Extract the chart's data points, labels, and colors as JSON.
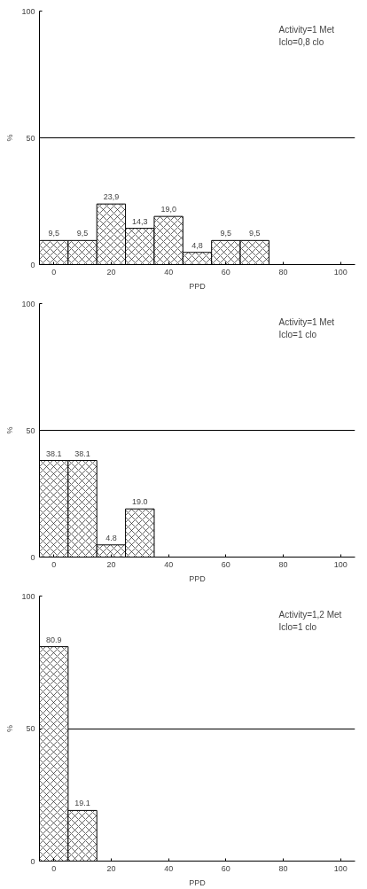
{
  "chart_data": [
    {
      "type": "histogram",
      "bins": [
        -5,
        5,
        15,
        25,
        35,
        45,
        55,
        65,
        75
      ],
      "values": [
        9.5,
        9.5,
        23.9,
        14.3,
        19.0,
        4.8,
        9.5,
        9.5
      ],
      "value_labels": [
        "9,5",
        "9,5",
        "23,9",
        "14,3",
        "19,0",
        "4,8",
        "9,5",
        "9,5"
      ],
      "color": "#000000",
      "xlim": [
        -5,
        105
      ],
      "xticks": [
        0,
        20,
        40,
        60,
        80,
        100
      ],
      "ylim": [
        0,
        100
      ],
      "yticks": [
        0,
        50,
        100
      ],
      "grid": "y",
      "xlabel": "PPD",
      "ylabel": "%",
      "annotations": [
        "Activity=1 Met",
        "Iclo=0,8 clo"
      ]
    },
    {
      "type": "histogram",
      "bins": [
        -5,
        5,
        15,
        25,
        35
      ],
      "values": [
        38.1,
        38.1,
        4.8,
        19.0
      ],
      "value_labels": [
        "38.1",
        "38.1",
        "4.8",
        "19.0"
      ],
      "color": "#000000",
      "xlim": [
        -5,
        105
      ],
      "xticks": [
        0,
        20,
        40,
        60,
        80,
        100
      ],
      "ylim": [
        0,
        100
      ],
      "yticks": [
        0,
        50,
        100
      ],
      "grid": "y",
      "xlabel": "PPD",
      "ylabel": "%",
      "annotations": [
        "Activity=1 Met",
        "Iclo=1 clo"
      ]
    },
    {
      "type": "histogram",
      "bins": [
        -5,
        5,
        15
      ],
      "values": [
        80.9,
        19.1
      ],
      "value_labels": [
        "80.9",
        "19.1"
      ],
      "color": "#000000",
      "xlim": [
        -5,
        105
      ],
      "xticks": [
        0,
        20,
        40,
        60,
        80,
        100
      ],
      "ylim": [
        0,
        100
      ],
      "yticks": [
        0,
        50,
        100
      ],
      "grid": "y",
      "xlabel": "PPD",
      "ylabel": "%",
      "annotations": [
        "Activity=1,2 Met",
        "Iclo=1 clo"
      ]
    }
  ]
}
